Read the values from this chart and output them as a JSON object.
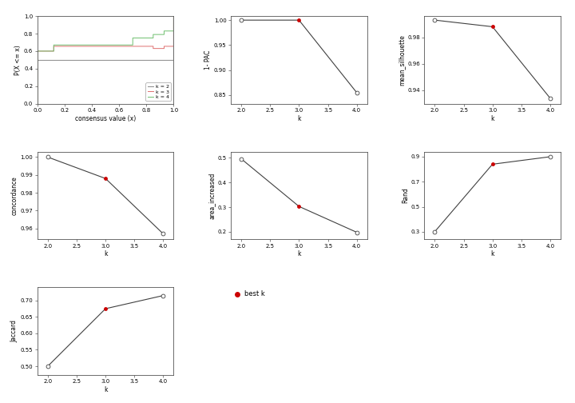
{
  "ecdf": {
    "xlabel": "consensus value (x)",
    "ylabel": "P(X <= x)",
    "xlim": [
      0.0,
      1.0
    ],
    "ylim": [
      0.0,
      1.0
    ],
    "xticks": [
      0.0,
      0.2,
      0.4,
      0.6,
      0.8,
      1.0
    ],
    "yticks": [
      0.0,
      0.2,
      0.4,
      0.6,
      0.8,
      1.0
    ],
    "k2_color": "#888888",
    "k3_color": "#e07070",
    "k4_color": "#70c070"
  },
  "pac": {
    "k": [
      2,
      3,
      4
    ],
    "y": [
      1.0,
      1.0,
      0.855
    ],
    "best_k": 3,
    "ylabel": "1- PAC",
    "xlabel": "k",
    "yticks": [
      0.85,
      0.9,
      0.95,
      1.0
    ],
    "ylim": [
      0.833,
      1.008
    ]
  },
  "silhouette": {
    "k": [
      2,
      3,
      4
    ],
    "y": [
      0.993,
      0.988,
      0.934
    ],
    "best_k": 3,
    "ylabel": "mean_silhouette",
    "xlabel": "k",
    "yticks": [
      0.94,
      0.96,
      0.98
    ],
    "ylim": [
      0.93,
      0.996
    ]
  },
  "concordance": {
    "k": [
      2,
      3,
      4
    ],
    "y": [
      1.0,
      0.988,
      0.957
    ],
    "best_k": 3,
    "ylabel": "concordance",
    "xlabel": "k",
    "yticks": [
      0.96,
      0.97,
      0.98,
      0.99,
      1.0
    ],
    "ylim": [
      0.954,
      1.003
    ]
  },
  "area_increased": {
    "k": [
      2,
      3,
      4
    ],
    "y": [
      0.496,
      0.303,
      0.198
    ],
    "best_k": 3,
    "ylabel": "area_increased",
    "xlabel": "k",
    "yticks": [
      0.2,
      0.3,
      0.4,
      0.5
    ],
    "ylim": [
      0.17,
      0.525
    ]
  },
  "rand": {
    "k": [
      2,
      3,
      4
    ],
    "y": [
      0.3,
      0.84,
      0.9
    ],
    "best_k": 3,
    "ylabel": "Rand",
    "xlabel": "k",
    "yticks": [
      0.3,
      0.5,
      0.7,
      0.9
    ],
    "ylim": [
      0.24,
      0.94
    ]
  },
  "jaccard": {
    "k": [
      2,
      3,
      4
    ],
    "y": [
      0.5,
      0.675,
      0.715
    ],
    "best_k": 3,
    "ylabel": "Jaccard",
    "xlabel": "k",
    "yticks": [
      0.5,
      0.55,
      0.6,
      0.65,
      0.7
    ],
    "ylim": [
      0.474,
      0.74
    ]
  },
  "legend_label": "best k",
  "best_marker_color": "#cc0000",
  "open_marker_edgecolor": "#404040",
  "line_color": "#404040",
  "marker_size": 3.5
}
